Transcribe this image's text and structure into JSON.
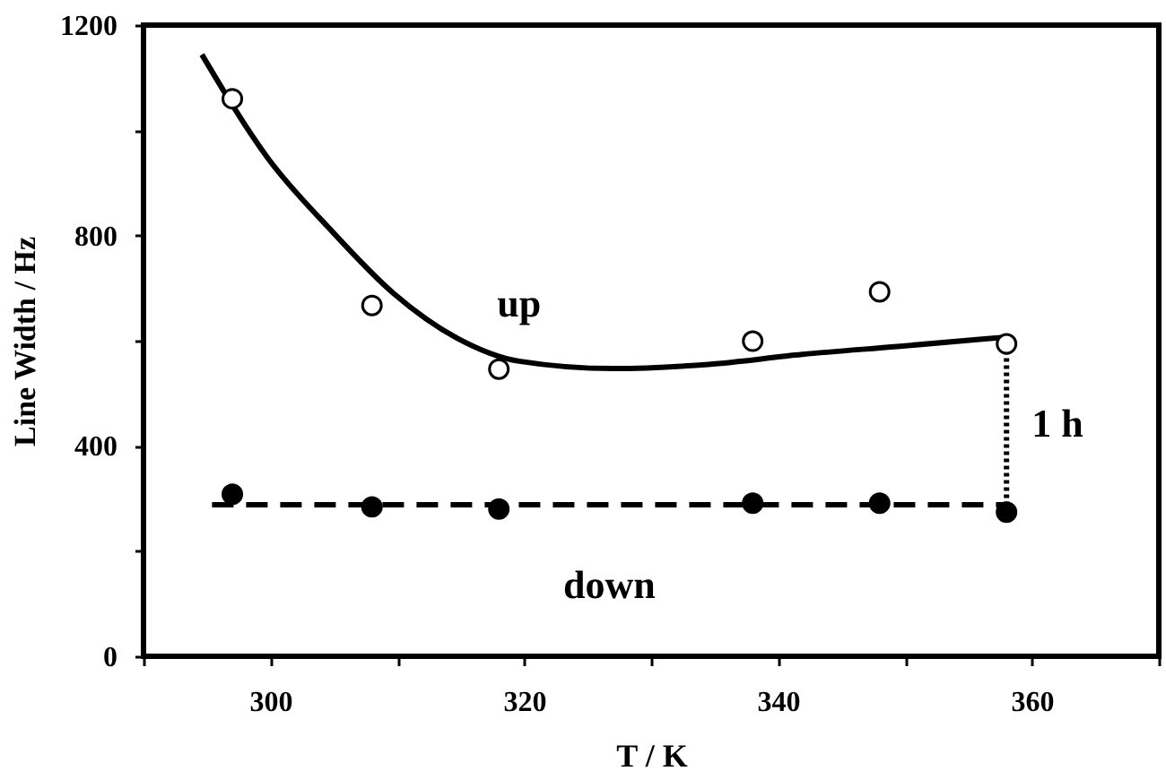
{
  "chart_data": {
    "type": "scatter",
    "xlabel": "T / K",
    "ylabel": "Line Width / Hz",
    "xlim": [
      290,
      370
    ],
    "ylim": [
      0,
      1200
    ],
    "xticks": [
      {
        "value": 290,
        "label": null
      },
      300,
      {
        "value": 310,
        "label": null
      },
      320,
      {
        "value": 330,
        "label": null
      },
      340,
      {
        "value": 350,
        "label": null
      },
      360,
      {
        "value": 370,
        "label": null
      }
    ],
    "yticks": [
      0,
      {
        "value": 200,
        "label": null
      },
      400,
      {
        "value": 600,
        "label": null
      },
      800,
      {
        "value": 1000,
        "label": null
      },
      1200
    ],
    "grid": false,
    "series": [
      {
        "type": "line",
        "name": "up",
        "color": "#000000",
        "line_style": "solid",
        "marker": "none",
        "x": [
          294.6,
          299.8,
          304.7,
          309.7,
          314.7,
          319.6,
          327,
          334.5,
          341.9,
          349.4,
          357.6
        ],
        "values": [
          1144,
          947,
          812,
          690,
          605,
          561,
          547,
          555,
          574,
          589,
          606
        ]
      },
      {
        "type": "line",
        "name": "down",
        "color": "#000000",
        "line_style": "dashed",
        "marker": "none",
        "x": [
          295.4,
          358
        ],
        "values": [
          288,
          288
        ]
      },
      {
        "type": "line",
        "name": "1 h",
        "color": "#000000",
        "line_style": "dotted",
        "marker": "none",
        "x": [
          358,
          358
        ],
        "values": [
          594,
          288
        ]
      },
      {
        "color": "#ffffff",
        "marker": "circle",
        "x": [
          297,
          308,
          318,
          338,
          348,
          358
        ],
        "values": [
          1060,
          667,
          546,
          599,
          693,
          594
        ]
      },
      {
        "color": "#000000",
        "marker": "circle",
        "x": [
          297,
          308,
          318,
          338,
          348,
          358
        ],
        "values": [
          308,
          284,
          280,
          291,
          291,
          274
        ]
      }
    ]
  }
}
